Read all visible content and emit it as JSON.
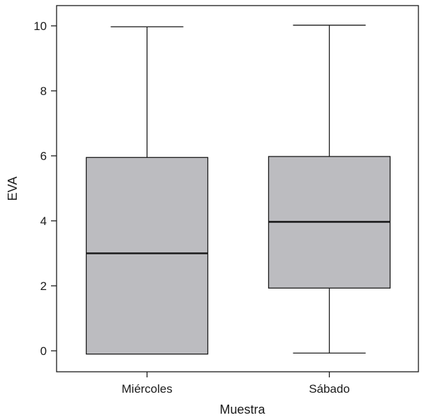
{
  "chart_data": {
    "type": "boxplot",
    "xlabel": "Muestra",
    "ylabel": "EVA",
    "ylim": [
      -0.75,
      10.65
    ],
    "yticks": [
      0,
      2,
      4,
      6,
      8,
      10
    ],
    "categories": [
      "Miércoles",
      "Sábado"
    ],
    "boxes": [
      {
        "category": "Miércoles",
        "whisker_low": -0.1,
        "q1": -0.1,
        "median": 3.0,
        "q3": 5.95,
        "whisker_high": 9.97
      },
      {
        "category": "Sábado",
        "whisker_low": -0.07,
        "q1": 1.93,
        "median": 3.97,
        "q3": 5.98,
        "whisker_high": 10.02
      }
    ],
    "colors": {
      "box_fill": "#bcbcc0",
      "stroke": "#1a1a1a"
    },
    "grid": false
  }
}
